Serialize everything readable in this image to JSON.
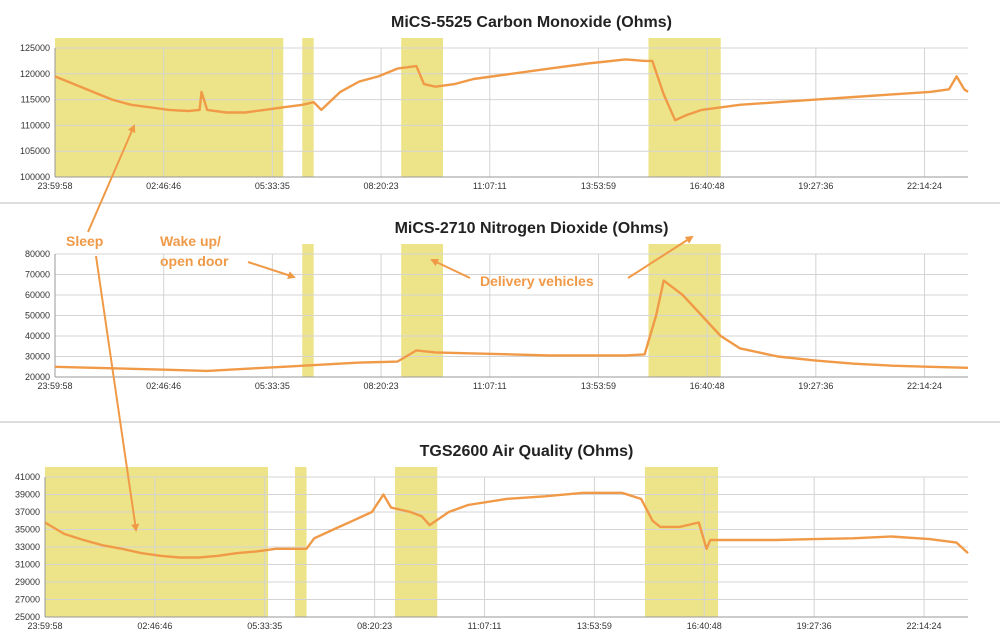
{
  "colors": {
    "line": "#f09a48",
    "highlight": "#eadf74",
    "annotation": "#f09a48"
  },
  "annotations": {
    "sleep": "Sleep",
    "wake_line1": "Wake up/",
    "wake_line2": "open door",
    "delivery": "Delivery vehicles"
  },
  "chart_data": [
    {
      "type": "line",
      "title": "MiCS-5525 Carbon Monoxide (Ohms)",
      "x_tick_labels": [
        "23:59:58",
        "02:46:46",
        "05:33:35",
        "08:20:23",
        "11:07:11",
        "13:53:59",
        "16:40:48",
        "19:27:36",
        "22:14:24"
      ],
      "y_tick_labels": [
        "100000",
        "105000",
        "110000",
        "115000",
        "120000",
        "125000"
      ],
      "ylim": [
        100000,
        125000
      ],
      "xlim": [
        0,
        24
      ],
      "grid": true,
      "highlights": [
        [
          0,
          6.0
        ],
        [
          6.5,
          6.8
        ],
        [
          9.1,
          10.2
        ],
        [
          15.6,
          17.5
        ]
      ],
      "series": [
        {
          "x": [
            0,
            0.5,
            1,
            1.5,
            2,
            2.5,
            3,
            3.5,
            3.8,
            3.85,
            4,
            4.5,
            5,
            5.5,
            6,
            6.5,
            6.8,
            7,
            7.5,
            8,
            8.5,
            9,
            9.5,
            9.7,
            10,
            10.5,
            11,
            12,
            13,
            14,
            15,
            15.5,
            15.7,
            16,
            16.3,
            16.6,
            17,
            18,
            19,
            20,
            21,
            22,
            23,
            23.5,
            23.7,
            23.9,
            24
          ],
          "y": [
            119500,
            118000,
            116500,
            115000,
            114000,
            113500,
            113000,
            112800,
            113000,
            116500,
            113000,
            112500,
            112500,
            113000,
            113500,
            114000,
            114500,
            113000,
            116500,
            118500,
            119500,
            121000,
            121500,
            118000,
            117500,
            118000,
            119000,
            120000,
            121000,
            122000,
            122800,
            122500,
            122500,
            116000,
            111000,
            112000,
            113000,
            114000,
            114500,
            115000,
            115500,
            116000,
            116500,
            117000,
            119500,
            117000,
            116500
          ]
        }
      ]
    },
    {
      "type": "line",
      "title": "MiCS-2710 Nitrogen Dioxide (Ohms)",
      "x_tick_labels": [
        "23:59:58",
        "02:46:46",
        "05:33:35",
        "08:20:23",
        "11:07:11",
        "13:53:59",
        "16:40:48",
        "19:27:36",
        "22:14:24"
      ],
      "y_tick_labels": [
        "20000",
        "30000",
        "40000",
        "50000",
        "60000",
        "70000",
        "80000"
      ],
      "ylim": [
        20000,
        80000
      ],
      "xlim": [
        0,
        24
      ],
      "grid": true,
      "highlights": [
        [
          6.5,
          6.8
        ],
        [
          9.1,
          10.2
        ],
        [
          15.6,
          17.5
        ]
      ],
      "series": [
        {
          "x": [
            0,
            1,
            2,
            3,
            4,
            5,
            6,
            7,
            8,
            9,
            9.5,
            10,
            11,
            12,
            13,
            14,
            15,
            15.5,
            15.8,
            16,
            16.5,
            17,
            17.5,
            18,
            19,
            20,
            21,
            22,
            23,
            24
          ],
          "y": [
            25000,
            24500,
            24000,
            23500,
            23000,
            24000,
            25000,
            26000,
            27000,
            27500,
            33000,
            32000,
            31500,
            31000,
            30500,
            30500,
            30500,
            31000,
            50000,
            67000,
            60000,
            50000,
            40000,
            34000,
            30000,
            28000,
            26500,
            25500,
            25000,
            24500
          ]
        }
      ]
    },
    {
      "type": "line",
      "title": "TGS2600 Air Quality (Ohms)",
      "x_tick_labels": [
        "23:59:58",
        "02:46:46",
        "05:33:35",
        "08:20:23",
        "11:07:11",
        "13:53:59",
        "16:40:48",
        "19:27:36",
        "22:14:24"
      ],
      "y_tick_labels": [
        "25000",
        "27000",
        "29000",
        "31000",
        "33000",
        "35000",
        "37000",
        "39000",
        "41000"
      ],
      "ylim": [
        25000,
        41000
      ],
      "xlim": [
        0,
        24
      ],
      "grid": true,
      "highlights": [
        [
          0,
          5.8
        ],
        [
          6.5,
          6.8
        ],
        [
          9.1,
          10.2
        ],
        [
          15.6,
          17.5
        ]
      ],
      "series": [
        {
          "x": [
            0,
            0.5,
            1,
            1.5,
            2,
            2.5,
            3,
            3.5,
            4,
            4.5,
            5,
            5.5,
            6,
            6.5,
            6.8,
            7,
            7.5,
            8,
            8.5,
            8.8,
            9,
            9.5,
            9.8,
            10,
            10.5,
            11,
            12,
            13,
            14,
            15,
            15.5,
            15.8,
            16,
            16.5,
            17,
            17.2,
            17.3,
            17.5,
            18,
            19,
            20,
            21,
            22,
            23,
            23.7,
            24
          ],
          "y": [
            35800,
            34500,
            33800,
            33200,
            32800,
            32300,
            32000,
            31800,
            31800,
            32000,
            32300,
            32500,
            32800,
            32800,
            32800,
            34000,
            35000,
            36000,
            37000,
            39000,
            37500,
            37000,
            36500,
            35500,
            37000,
            37800,
            38500,
            38800,
            39200,
            39200,
            38500,
            36000,
            35300,
            35300,
            35800,
            32800,
            33800,
            33800,
            33800,
            33800,
            33900,
            34000,
            34200,
            33900,
            33500,
            32300
          ]
        }
      ]
    }
  ]
}
